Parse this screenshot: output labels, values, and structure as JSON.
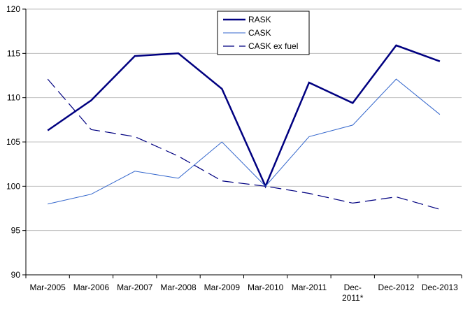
{
  "chart_data": {
    "type": "line",
    "categories": [
      "Mar-2005",
      "Mar-2006",
      "Mar-2007",
      "Mar-2008",
      "Mar-2009",
      "Mar-2010",
      "Mar-2011",
      "Dec-2011*",
      "Dec-2012",
      "Dec-2013"
    ],
    "category_lines": [
      [
        "Mar-2005"
      ],
      [
        "Mar-2006"
      ],
      [
        "Mar-2007"
      ],
      [
        "Mar-2008"
      ],
      [
        "Mar-2009"
      ],
      [
        "Mar-2010"
      ],
      [
        "Mar-2011"
      ],
      [
        "Dec-",
        "2011*"
      ],
      [
        "Dec-2012"
      ],
      [
        "Dec-2013"
      ]
    ],
    "ylim": [
      90,
      120
    ],
    "yticks": [
      90,
      95,
      100,
      105,
      110,
      115,
      120
    ],
    "grid": true,
    "legend": "top-center",
    "series": [
      {
        "name": "RASK",
        "values": [
          106.3,
          109.7,
          114.7,
          115.0,
          111.0,
          100.0,
          111.7,
          109.4,
          115.9,
          114.1
        ],
        "color": "#000080",
        "style": "solid-thick"
      },
      {
        "name": "CASK",
        "values": [
          98.0,
          99.1,
          101.7,
          100.9,
          105.0,
          100.0,
          105.6,
          106.9,
          112.1,
          108.1
        ],
        "color": "#3366cc",
        "style": "solid-thin"
      },
      {
        "name": "CASK ex fuel",
        "values": [
          112.1,
          106.4,
          105.6,
          103.4,
          100.6,
          100.0,
          99.2,
          98.1,
          98.8,
          97.4
        ],
        "color": "#000080",
        "style": "dashed"
      }
    ],
    "title": "",
    "xlabel": "",
    "ylabel": ""
  }
}
